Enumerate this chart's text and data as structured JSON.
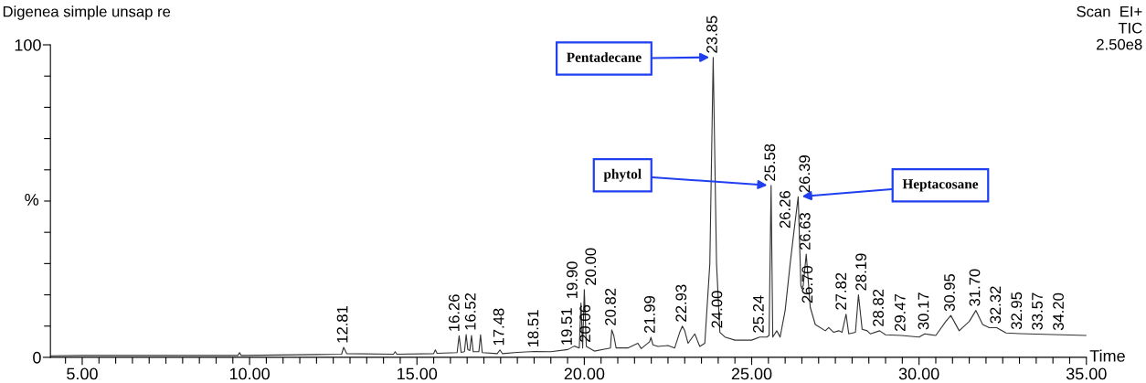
{
  "chart_data": {
    "type": "line",
    "title": "Digenea simple unsap re",
    "xlabel": "Time",
    "ylabel": "%",
    "xlim": [
      4.05,
      35
    ],
    "ylim": [
      0,
      100
    ],
    "xticks": [
      {
        "value": 4.5,
        "label": null
      },
      {
        "value": 5,
        "label": "5.00"
      },
      {
        "value": 5.5,
        "label": null
      },
      {
        "value": 6,
        "label": null
      },
      {
        "value": 6.5,
        "label": null
      },
      {
        "value": 7,
        "label": null
      },
      {
        "value": 7.5,
        "label": null
      },
      {
        "value": 8,
        "label": null
      },
      {
        "value": 8.5,
        "label": null
      },
      {
        "value": 9,
        "label": null
      },
      {
        "value": 9.5,
        "label": null
      },
      {
        "value": 10,
        "label": "10.00"
      },
      {
        "value": 10.5,
        "label": null
      },
      {
        "value": 11,
        "label": null
      },
      {
        "value": 11.5,
        "label": null
      },
      {
        "value": 12,
        "label": null
      },
      {
        "value": 12.5,
        "label": null
      },
      {
        "value": 13,
        "label": null
      },
      {
        "value": 13.5,
        "label": null
      },
      {
        "value": 14,
        "label": null
      },
      {
        "value": 14.5,
        "label": null
      },
      {
        "value": 15,
        "label": "15.00"
      },
      {
        "value": 15.5,
        "label": null
      },
      {
        "value": 16,
        "label": null
      },
      {
        "value": 16.5,
        "label": null
      },
      {
        "value": 17,
        "label": null
      },
      {
        "value": 17.5,
        "label": null
      },
      {
        "value": 18,
        "label": null
      },
      {
        "value": 18.5,
        "label": null
      },
      {
        "value": 19,
        "label": null
      },
      {
        "value": 19.5,
        "label": null
      },
      {
        "value": 20,
        "label": "20.00"
      },
      {
        "value": 20.5,
        "label": null
      },
      {
        "value": 21,
        "label": null
      },
      {
        "value": 21.5,
        "label": null
      },
      {
        "value": 22,
        "label": null
      },
      {
        "value": 22.5,
        "label": null
      },
      {
        "value": 23,
        "label": null
      },
      {
        "value": 23.5,
        "label": null
      },
      {
        "value": 24,
        "label": null
      },
      {
        "value": 24.5,
        "label": null
      },
      {
        "value": 25,
        "label": "25.00"
      },
      {
        "value": 25.5,
        "label": null
      },
      {
        "value": 26,
        "label": null
      },
      {
        "value": 26.5,
        "label": null
      },
      {
        "value": 27,
        "label": null
      },
      {
        "value": 27.5,
        "label": null
      },
      {
        "value": 28,
        "label": null
      },
      {
        "value": 28.5,
        "label": null
      },
      {
        "value": 29,
        "label": null
      },
      {
        "value": 29.5,
        "label": null
      },
      {
        "value": 30,
        "label": "30.00"
      },
      {
        "value": 30.5,
        "label": null
      },
      {
        "value": 31,
        "label": null
      },
      {
        "value": 31.5,
        "label": null
      },
      {
        "value": 32,
        "label": null
      },
      {
        "value": 32.5,
        "label": null
      },
      {
        "value": 33,
        "label": null
      },
      {
        "value": 33.5,
        "label": null
      },
      {
        "value": 34,
        "label": null
      },
      {
        "value": 34.5,
        "label": null
      },
      {
        "value": 35,
        "label": "35.00"
      }
    ],
    "yticks": [
      0,
      {
        "value": 10,
        "label": null
      },
      {
        "value": 20,
        "label": null
      },
      {
        "value": 30,
        "label": null
      },
      {
        "value": 40,
        "label": null
      },
      {
        "value": 50,
        "label": null
      },
      {
        "value": 60,
        "label": null
      },
      {
        "value": 70,
        "label": null
      },
      {
        "value": 80,
        "label": null
      },
      {
        "value": 90,
        "label": null
      },
      100
    ],
    "grid": false,
    "series": [
      {
        "color": "#333333",
        "x": [
          4.05,
          5.0,
          7.0,
          9.65,
          9.7,
          9.75,
          12.0,
          12.75,
          12.81,
          12.9,
          14.3,
          14.35,
          14.4,
          15.5,
          15.55,
          15.6,
          16.2,
          16.26,
          16.32,
          16.42,
          16.47,
          16.52,
          16.58,
          16.63,
          16.68,
          16.85,
          16.9,
          16.95,
          17.4,
          17.48,
          17.55,
          18.0,
          18.51,
          19.0,
          19.51,
          19.7,
          19.85,
          19.9,
          19.95,
          20.0,
          20.06,
          20.3,
          20.6,
          20.78,
          20.82,
          20.88,
          20.95,
          21.3,
          21.6,
          21.7,
          21.95,
          21.99,
          22.05,
          22.2,
          22.5,
          22.7,
          22.85,
          22.93,
          23.0,
          23.1,
          23.3,
          23.45,
          23.6,
          23.75,
          23.85,
          23.95,
          24.05,
          24.2,
          24.5,
          25.0,
          25.24,
          25.45,
          25.52,
          25.58,
          25.63,
          25.75,
          25.85,
          26.0,
          26.15,
          26.26,
          26.39,
          26.47,
          26.5,
          26.54,
          26.63,
          26.75,
          26.9,
          27.2,
          27.3,
          27.45,
          27.6,
          27.7,
          27.82,
          27.9,
          28.1,
          28.19,
          28.3,
          28.45,
          28.55,
          28.82,
          29.0,
          29.47,
          30.0,
          30.17,
          30.5,
          30.8,
          30.95,
          31.2,
          31.5,
          31.7,
          31.9,
          32.1,
          32.32,
          32.6,
          33.0,
          34.0,
          35.0
        ],
        "values": [
          0.5,
          0.6,
          0.6,
          0.6,
          1.5,
          0.6,
          0.9,
          1.0,
          3.2,
          1.2,
          1.0,
          1.8,
          1.0,
          1.2,
          2.4,
          1.3,
          1.5,
          6.9,
          1.6,
          1.8,
          7.3,
          2.5,
          2.2,
          7.0,
          1.8,
          1.8,
          7.2,
          1.5,
          1.2,
          2.4,
          1.2,
          1.6,
          1.9,
          1.8,
          2.5,
          3.6,
          3.0,
          17.4,
          3.0,
          21.7,
          3.5,
          2.0,
          2.6,
          3.0,
          8.8,
          7.0,
          3.0,
          3.0,
          4.5,
          2.8,
          5.0,
          6.4,
          4.0,
          3.5,
          3.8,
          3.0,
          8.0,
          10.0,
          8.5,
          4.5,
          7.5,
          3.5,
          4.5,
          30,
          96,
          30,
          8.0,
          6.5,
          5.5,
          5.5,
          6.5,
          6.5,
          7.0,
          55,
          6.5,
          8.5,
          6.5,
          15,
          30,
          40,
          51.4,
          23,
          22,
          23,
          33,
          16,
          10.5,
          8.5,
          9.5,
          8.0,
          8.5,
          8.0,
          13.8,
          7.5,
          8.0,
          20,
          9.0,
          8.5,
          7.5,
          8.5,
          7.2,
          7.0,
          6.5,
          7.5,
          7.0,
          11.5,
          13.4,
          8.5,
          11.5,
          15,
          10.5,
          9.5,
          9.5,
          7.8,
          7.6,
          7.3,
          7.0
        ]
      }
    ],
    "annotations": [
      "Scan  EI+",
      "TIC",
      "2.50e8",
      {
        "text": "Pentadecane",
        "x": 23.85,
        "y": 96
      },
      {
        "text": "phytol",
        "x": 25.58,
        "y": 55
      },
      {
        "text": "Heptacosane",
        "x": 26.39,
        "y": 51.4
      },
      {
        "text": "12.81",
        "x": 12.81,
        "y": 3.2
      },
      {
        "text": "16.26",
        "x": 16.26,
        "y": 6.9
      },
      {
        "text": "16.52",
        "x": 16.52,
        "y": 7.3
      },
      {
        "text": "17.48",
        "x": 17.48,
        "y": 2.4
      },
      {
        "text": "18.51",
        "x": 18.51,
        "y": 1.9
      },
      {
        "text": "19.51",
        "x": 19.51,
        "y": 2.5
      },
      {
        "text": "19.90",
        "x": 19.9,
        "y": 17.4
      },
      {
        "text": "20.00",
        "x": 20.0,
        "y": 21.7
      },
      {
        "text": "20.06",
        "x": 20.06,
        "y": 3.5
      },
      {
        "text": "20.82",
        "x": 20.82,
        "y": 8.8
      },
      {
        "text": "21.99",
        "x": 21.99,
        "y": 6.4
      },
      {
        "text": "22.93",
        "x": 22.93,
        "y": 10.0
      },
      {
        "text": "23.85",
        "x": 23.85,
        "y": 96
      },
      {
        "text": "24.00",
        "x": 24.0,
        "y": 8.0
      },
      {
        "text": "25.24",
        "x": 25.24,
        "y": 6.5
      },
      {
        "text": "25.58",
        "x": 25.58,
        "y": 55
      },
      {
        "text": "26.26",
        "x": 26.26,
        "y": 40
      },
      {
        "text": "26.39",
        "x": 26.39,
        "y": 51.4
      },
      {
        "text": "26.63",
        "x": 26.63,
        "y": 33
      },
      {
        "text": "26.70",
        "x": 26.7,
        "y": 16
      },
      {
        "text": "27.82",
        "x": 27.82,
        "y": 13.8
      },
      {
        "text": "28.19",
        "x": 28.19,
        "y": 20
      },
      {
        "text": "28.82",
        "x": 28.82,
        "y": 8.5
      },
      {
        "text": "29.47",
        "x": 29.47,
        "y": 7.0
      },
      {
        "text": "30.17",
        "x": 30.17,
        "y": 7.5
      },
      {
        "text": "30.95",
        "x": 30.95,
        "y": 13.4
      },
      {
        "text": "31.70",
        "x": 31.7,
        "y": 15
      },
      {
        "text": "32.32",
        "x": 32.32,
        "y": 9.5
      },
      {
        "text": "32.95",
        "x": 32.95,
        "y": 7.6
      },
      {
        "text": "33.57",
        "x": 33.57,
        "y": 7.4
      },
      {
        "text": "34.20",
        "x": 34.2,
        "y": 7.3
      }
    ]
  }
}
